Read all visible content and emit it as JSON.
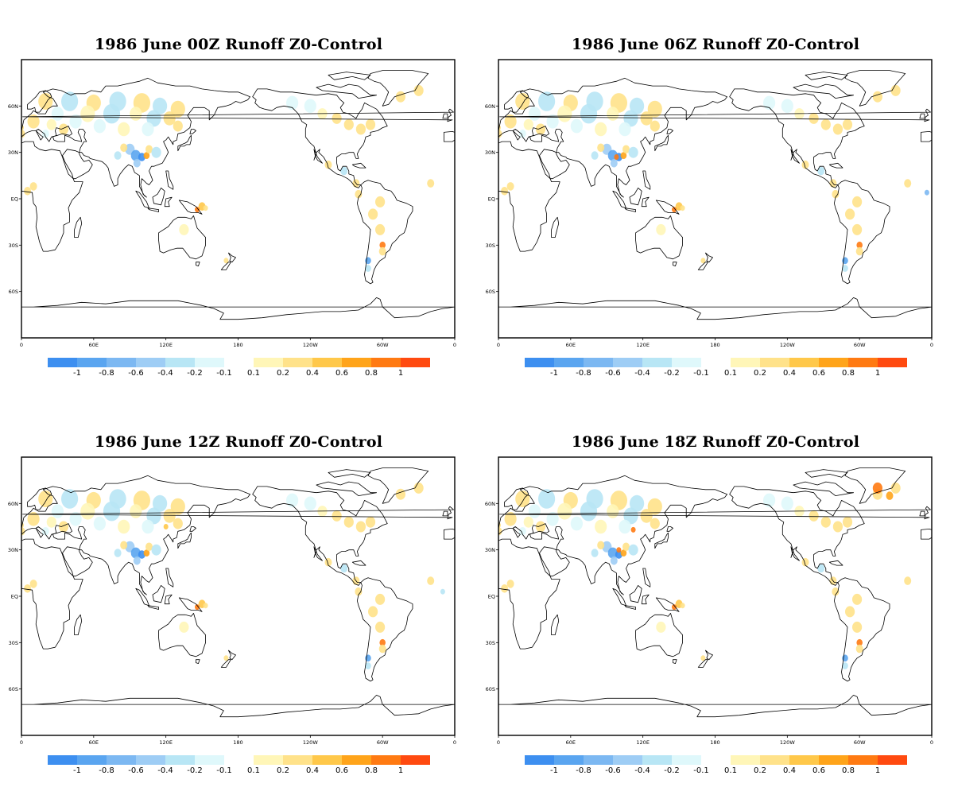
{
  "panels": [
    {
      "title": "1986 June 00Z Runoff Z0-Control"
    },
    {
      "title": "1986  June 06Z Runoff Z0-Control"
    },
    {
      "title": "1986  June 12Z Runoff Z0-Control"
    },
    {
      "title": "1986  June 18Z Runoff Z0-Control"
    }
  ],
  "axes": {
    "lon_ticks": [
      "0",
      "60E",
      "120E",
      "180",
      "120W",
      "60W",
      "0"
    ],
    "lat_ticks": [
      "60N",
      "30N",
      "EQ",
      "30S",
      "60S"
    ]
  },
  "legend": {
    "labels": [
      "-1",
      "-0.8",
      "-0.6",
      "-0.4",
      "-0.2",
      "-0.1",
      "0.1",
      "0.2",
      "0.4",
      "0.6",
      "0.8",
      "1"
    ],
    "negative_colors": [
      "#3d8ff0",
      "#5aa5f0",
      "#7cb8f2",
      "#9ecdf5",
      "#b8e6f5",
      "#dff8fb"
    ],
    "positive_colors": [
      "#fff6b8",
      "#ffe28a",
      "#ffc84a",
      "#ffa41a",
      "#ff7a12",
      "#ff4a10"
    ]
  },
  "chart_data": [
    {
      "type": "heatmap",
      "title": "1986 June 00Z Runoff Z0-Control",
      "x_range": [
        "0",
        "0"
      ],
      "y_range": [
        "90S",
        "90N"
      ],
      "color_levels": [
        -1,
        -0.8,
        -0.6,
        -0.4,
        -0.2,
        -0.1,
        0.1,
        0.2,
        0.4,
        0.6,
        0.8,
        1
      ]
    },
    {
      "type": "heatmap",
      "title": "1986  June 06Z Runoff Z0-Control",
      "x_range": [
        "0",
        "0"
      ],
      "y_range": [
        "90S",
        "90N"
      ],
      "color_levels": [
        -1,
        -0.8,
        -0.6,
        -0.4,
        -0.2,
        -0.1,
        0.1,
        0.2,
        0.4,
        0.6,
        0.8,
        1
      ]
    },
    {
      "type": "heatmap",
      "title": "1986  June 12Z Runoff Z0-Control",
      "x_range": [
        "0",
        "0"
      ],
      "y_range": [
        "90S",
        "90N"
      ],
      "color_levels": [
        -1,
        -0.8,
        -0.6,
        -0.4,
        -0.2,
        -0.1,
        0.1,
        0.2,
        0.4,
        0.6,
        0.8,
        1
      ]
    },
    {
      "type": "heatmap",
      "title": "1986  June 18Z Runoff Z0-Control",
      "x_range": [
        "0",
        "0"
      ],
      "y_range": [
        "90S",
        "90N"
      ],
      "color_levels": [
        -1,
        -0.8,
        -0.6,
        -0.4,
        -0.2,
        -0.1,
        0.1,
        0.2,
        0.4,
        0.6,
        0.8,
        1
      ]
    }
  ]
}
